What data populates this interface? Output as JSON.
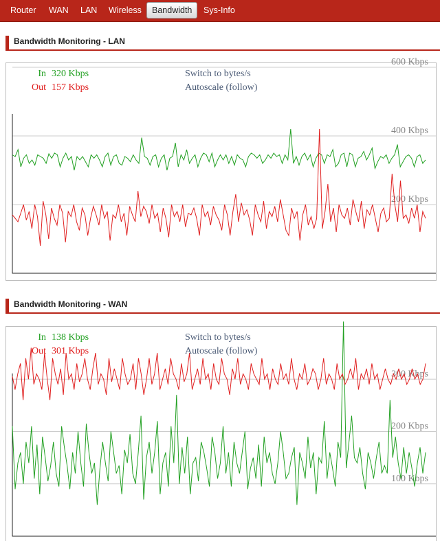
{
  "nav": {
    "items": [
      "Router",
      "WAN",
      "LAN",
      "Wireless",
      "Bandwidth",
      "Sys-Info"
    ],
    "active": "Bandwidth"
  },
  "sections": [
    {
      "title": "Bandwidth Monitoring - LAN",
      "in_label": "In",
      "in_value": "320 Kbps",
      "out_label": "Out",
      "out_value": "157 Kbps",
      "switch_label": "Switch to bytes/s",
      "autoscale_label": "Autoscale (follow)",
      "gridlines": [
        {
          "value": 600,
          "label": "600 Kbps"
        },
        {
          "value": 400,
          "label": "400 Kbps"
        },
        {
          "value": 200,
          "label": "200 Kbps"
        }
      ]
    },
    {
      "title": "Bandwidth Monitoring - WAN",
      "in_label": "In",
      "in_value": "138 Kbps",
      "out_label": "Out",
      "out_value": "301 Kbps",
      "switch_label": "Switch to bytes/s",
      "autoscale_label": "Autoscale (follow)",
      "gridlines": [
        {
          "value": 300,
          "label": "300 Kbps"
        },
        {
          "value": 200,
          "label": "200 Kbps"
        },
        {
          "value": 100,
          "label": "100 Kbps"
        }
      ]
    }
  ],
  "colors": {
    "accent": "#b8261a",
    "in_series": "#22a022",
    "out_series": "#e02020",
    "grid": "#cccccc"
  },
  "chart_data": [
    {
      "type": "line",
      "ylim": [
        0,
        600
      ],
      "series": [
        {
          "name": "In",
          "color": "#22a022",
          "values": [
            345,
            340,
            360,
            310,
            335,
            345,
            320,
            330,
            315,
            345,
            340,
            335,
            320,
            348,
            335,
            350,
            345,
            310,
            335,
            350,
            330,
            340,
            300,
            340,
            330,
            340,
            325,
            310,
            345,
            335,
            345,
            330,
            310,
            340,
            350,
            315,
            340,
            345,
            320,
            315,
            340,
            335,
            325,
            345,
            330,
            320,
            395,
            340,
            335,
            315,
            340,
            345,
            310,
            335,
            345,
            300,
            335,
            340,
            380,
            310,
            345,
            330,
            360,
            320,
            335,
            345,
            310,
            335,
            350,
            345,
            325,
            350,
            310,
            330,
            345,
            330,
            345,
            320,
            340,
            315,
            345,
            335,
            330,
            310,
            340,
            350,
            345,
            335,
            345,
            320,
            330,
            345,
            335,
            350,
            340,
            345,
            320,
            345,
            330,
            420,
            320,
            340,
            315,
            340,
            350,
            330,
            345,
            310,
            335,
            350,
            345,
            320,
            345,
            340,
            360,
            310,
            320,
            345,
            350,
            310,
            350,
            345,
            310,
            335,
            340,
            355,
            330,
            345,
            365,
            305,
            325,
            340,
            335,
            345,
            320,
            335,
            345,
            375,
            310,
            325,
            340,
            345,
            335,
            310,
            340,
            345,
            320,
            330
          ]
        },
        {
          "name": "Out",
          "color": "#e02020",
          "values": [
            170,
            160,
            150,
            175,
            200,
            155,
            180,
            130,
            200,
            165,
            80,
            210,
            170,
            100,
            190,
            160,
            140,
            200,
            175,
            90,
            180,
            165,
            200,
            150,
            125,
            190,
            170,
            110,
            160,
            195,
            170,
            140,
            200,
            160,
            180,
            95,
            170,
            160,
            200,
            150,
            175,
            110,
            195,
            170,
            150,
            240,
            165,
            195,
            180,
            145,
            200,
            160,
            175,
            120,
            190,
            160,
            105,
            200,
            165,
            180,
            150,
            200,
            135,
            175,
            170,
            190,
            160,
            110,
            200,
            165,
            180,
            140,
            195,
            170,
            155,
            125,
            200,
            170,
            110,
            180,
            230,
            150,
            205,
            170,
            185,
            155,
            110,
            200,
            170,
            150,
            210,
            130,
            180,
            165,
            195,
            150,
            215,
            170,
            125,
            110,
            190,
            160,
            180,
            95,
            170,
            200,
            140,
            165,
            130,
            160,
            420,
            130,
            180,
            260,
            150,
            190,
            120,
            200,
            170,
            160,
            190,
            140,
            215,
            180,
            150,
            210,
            130,
            185,
            170,
            200,
            160,
            120,
            175,
            190,
            150,
            160,
            290,
            200,
            150,
            270,
            160,
            170,
            145,
            190,
            160,
            200,
            120,
            180,
            160
          ]
        }
      ]
    },
    {
      "type": "line",
      "ylim": [
        0,
        400
      ],
      "series": [
        {
          "name": "In",
          "color": "#22a022",
          "values": [
            210,
            90,
            140,
            160,
            100,
            180,
            140,
            210,
            110,
            175,
            80,
            190,
            150,
            105,
            135,
            180,
            120,
            95,
            210,
            170,
            135,
            90,
            160,
            120,
            200,
            140,
            95,
            215,
            160,
            120,
            140,
            60,
            130,
            180,
            140,
            105,
            200,
            160,
            120,
            135,
            80,
            165,
            140,
            195,
            120,
            100,
            160,
            230,
            70,
            150,
            180,
            120,
            160,
            220,
            80,
            140,
            160,
            95,
            210,
            140,
            270,
            100,
            170,
            120,
            190,
            80,
            140,
            150,
            105,
            180,
            160,
            130,
            95,
            190,
            160,
            110,
            140,
            210,
            120,
            160,
            95,
            180,
            140,
            120,
            160,
            200,
            90,
            130,
            150,
            110,
            175,
            95,
            190,
            140,
            160,
            120,
            100,
            140,
            200,
            160,
            110,
            120,
            150,
            170,
            60,
            160,
            140,
            110,
            190,
            130,
            160,
            80,
            150,
            140,
            220,
            110,
            160,
            130,
            95,
            180,
            150,
            410,
            130,
            180,
            230,
            150,
            140,
            170,
            120,
            90,
            160,
            140,
            110,
            150,
            180,
            120,
            135,
            120,
            260,
            150,
            190,
            140,
            110,
            170,
            120,
            160,
            130,
            95,
            140,
            170,
            120,
            160
          ]
        },
        {
          "name": "Out",
          "color": "#e02020",
          "values": [
            305,
            280,
            310,
            330,
            260,
            340,
            300,
            360,
            290,
            310,
            300,
            280,
            350,
            300,
            260,
            340,
            310,
            290,
            320,
            270,
            350,
            300,
            310,
            280,
            330,
            295,
            310,
            340,
            300,
            280,
            320,
            350,
            290,
            310,
            300,
            270,
            340,
            295,
            320,
            300,
            280,
            340,
            310,
            290,
            300,
            330,
            280,
            340,
            310,
            270,
            300,
            340,
            290,
            310,
            350,
            280,
            300,
            320,
            290,
            340,
            310,
            300,
            280,
            330,
            295,
            310,
            350,
            280,
            300,
            320,
            290,
            340,
            300,
            310,
            280,
            330,
            300,
            290,
            340,
            310,
            300,
            270,
            320,
            300,
            340,
            290,
            310,
            300,
            280,
            330,
            310,
            300,
            290,
            340,
            300,
            310,
            280,
            320,
            300,
            290,
            330,
            300,
            310,
            290,
            340,
            300,
            280,
            310,
            300,
            330,
            290,
            300,
            320,
            310,
            280,
            300,
            340,
            290,
            310,
            300,
            280,
            330,
            300,
            310,
            290,
            300,
            320,
            300,
            340,
            280,
            310,
            300,
            320,
            290,
            330,
            300,
            310,
            280,
            300,
            320,
            300,
            290,
            310,
            300,
            320,
            300,
            310,
            290,
            300,
            320,
            300,
            310,
            290,
            300,
            330
          ]
        }
      ]
    }
  ]
}
